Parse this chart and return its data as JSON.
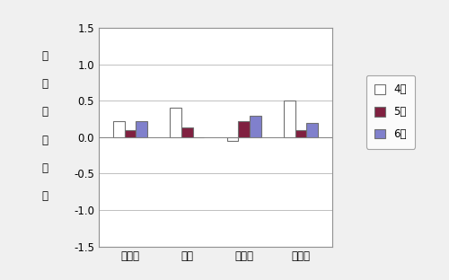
{
  "categories": [
    "三重県",
    "津市",
    "桜名市",
    "伊賀市"
  ],
  "series": {
    "4月": [
      0.22,
      0.4,
      -0.05,
      0.5
    ],
    "5月": [
      0.1,
      0.13,
      0.22,
      0.1
    ],
    "6月": [
      0.22,
      0.0,
      0.3,
      0.2
    ]
  },
  "bar_colors": {
    "4月": "#ffffff",
    "5月": "#802040",
    "6月": "#8080cc"
  },
  "bar_edgecolors": {
    "4月": "#707070",
    "5月": "#707070",
    "6月": "#707070"
  },
  "ylabel_chars": [
    "対",
    "前",
    "月",
    "上",
    "昇",
    "率"
  ],
  "ylim": [
    -1.5,
    1.5
  ],
  "yticks": [
    -1.5,
    -1.0,
    -0.5,
    0.0,
    0.5,
    1.0,
    1.5
  ],
  "ytick_labels": [
    "-1.5",
    "-1.0",
    "-0.5",
    "0.0",
    "0.5",
    "1.0",
    "1.5"
  ],
  "legend_labels": [
    "4月",
    "5月",
    "6月"
  ],
  "background_color": "#f0f0f0",
  "plot_bg_color": "#ffffff",
  "grid_color": "#c0c0c0",
  "bar_width": 0.2,
  "font_size": 8.5
}
